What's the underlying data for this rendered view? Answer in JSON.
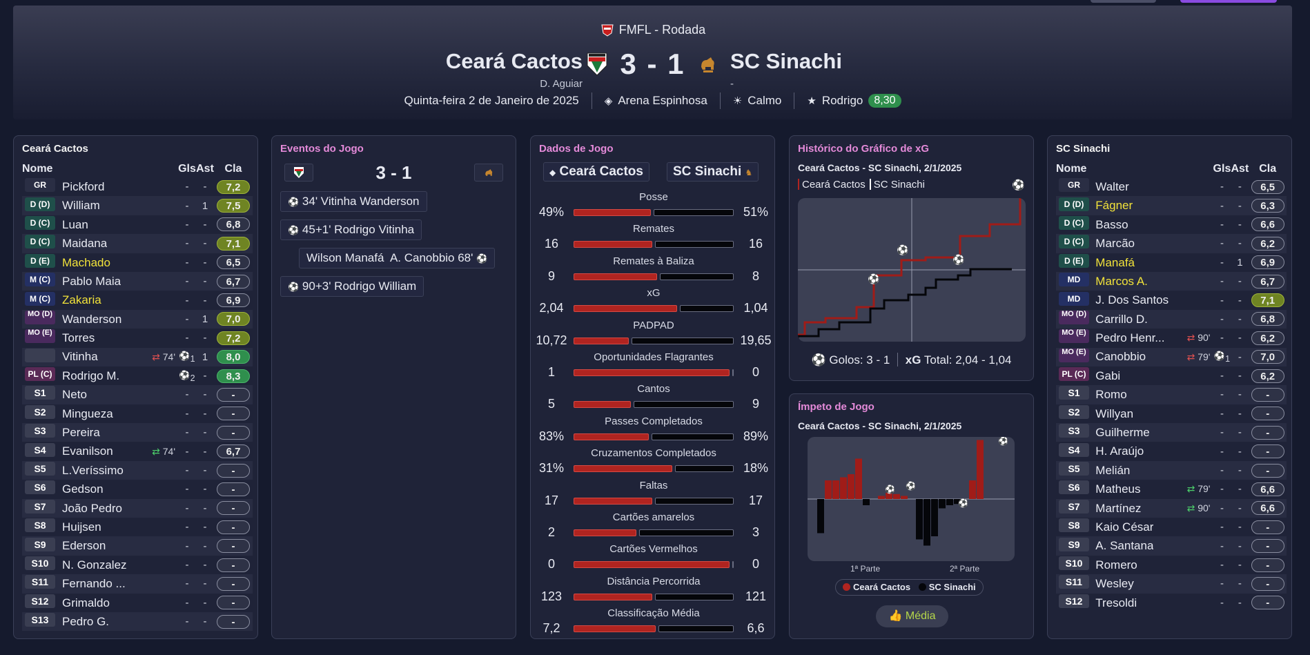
{
  "header": {
    "competition": "FMFL - Rodada",
    "home": {
      "name": "Ceará Cactos",
      "manager": "D. Aguiar"
    },
    "away": {
      "name": "SC Sinachi",
      "manager": "-"
    },
    "score": "3 - 1",
    "date": "Quinta-feira 2 de Janeiro de 2025",
    "stadium": "Arena Espinhosa",
    "weather": "Calmo",
    "motm": "Rodrigo",
    "motm_rating": "8,30"
  },
  "home_squad": {
    "title": "Ceará Cactos",
    "cols": {
      "name": "Nome",
      "gls": "Gls",
      "ast": "Ast",
      "cla": "Cla"
    },
    "players": [
      {
        "pos": "GR",
        "name": "Pickford",
        "sub": "",
        "gls": "-",
        "ast": "-",
        "rating": "7,2",
        "tone": "y"
      },
      {
        "pos": "D (D)",
        "name": "William",
        "sub": "",
        "gls": "-",
        "ast": "1",
        "rating": "7,5",
        "tone": "y"
      },
      {
        "pos": "D (C)",
        "name": "Luan",
        "sub": "",
        "gls": "-",
        "ast": "-",
        "rating": "6,8",
        "tone": "n"
      },
      {
        "pos": "D (C)",
        "name": "Maidana",
        "sub": "",
        "gls": "-",
        "ast": "-",
        "rating": "7,1",
        "tone": "y"
      },
      {
        "pos": "D (E)",
        "name": "Machado",
        "sub": "",
        "gls": "-",
        "ast": "-",
        "rating": "6,5",
        "tone": "n",
        "yellow": true
      },
      {
        "pos": "M (C)",
        "name": "Pablo Maia",
        "sub": "",
        "gls": "-",
        "ast": "-",
        "rating": "6,7",
        "tone": "n"
      },
      {
        "pos": "M (C)",
        "name": "Zakaria",
        "sub": "",
        "gls": "-",
        "ast": "-",
        "rating": "6,9",
        "tone": "n",
        "yellow": true
      },
      {
        "pos": "MO (D)",
        "name": "Wanderson",
        "sub": "",
        "gls": "-",
        "ast": "1",
        "rating": "7,0",
        "tone": "y"
      },
      {
        "pos": "MO (E)",
        "name": "Torres",
        "sub": "",
        "gls": "-",
        "ast": "-",
        "rating": "7,2",
        "tone": "y"
      },
      {
        "pos": "",
        "name": "Vitinha",
        "sub": "74'",
        "gls": "1",
        "ast": "1",
        "rating": "8,0",
        "tone": "g"
      },
      {
        "pos": "PL (C)",
        "name": "Rodrigo M.",
        "sub": "",
        "gls": "2",
        "ast": "-",
        "rating": "8,3",
        "tone": "g"
      },
      {
        "pos": "S1",
        "name": "Neto",
        "sub": "",
        "gls": "-",
        "ast": "-",
        "rating": "-",
        "tone": "n"
      },
      {
        "pos": "S2",
        "name": "Mingueza",
        "sub": "",
        "gls": "-",
        "ast": "-",
        "rating": "-",
        "tone": "n"
      },
      {
        "pos": "S3",
        "name": "Pereira",
        "sub": "",
        "gls": "-",
        "ast": "-",
        "rating": "-",
        "tone": "n"
      },
      {
        "pos": "S4",
        "name": "Evanilson",
        "sub": "74'",
        "gls": "-",
        "ast": "-",
        "rating": "6,7",
        "tone": "n"
      },
      {
        "pos": "S5",
        "name": "L.Veríssimo",
        "sub": "",
        "gls": "-",
        "ast": "-",
        "rating": "-",
        "tone": "n"
      },
      {
        "pos": "S6",
        "name": "Gedson",
        "sub": "",
        "gls": "-",
        "ast": "-",
        "rating": "-",
        "tone": "n"
      },
      {
        "pos": "S7",
        "name": "João Pedro",
        "sub": "",
        "gls": "-",
        "ast": "-",
        "rating": "-",
        "tone": "n"
      },
      {
        "pos": "S8",
        "name": "Huijsen",
        "sub": "",
        "gls": "-",
        "ast": "-",
        "rating": "-",
        "tone": "n"
      },
      {
        "pos": "S9",
        "name": "Ederson",
        "sub": "",
        "gls": "-",
        "ast": "-",
        "rating": "-",
        "tone": "n"
      },
      {
        "pos": "S10",
        "name": "N. Gonzalez",
        "sub": "",
        "gls": "-",
        "ast": "-",
        "rating": "-",
        "tone": "n"
      },
      {
        "pos": "S11",
        "name": "Fernando ...",
        "sub": "",
        "gls": "-",
        "ast": "-",
        "rating": "-",
        "tone": "n"
      },
      {
        "pos": "S12",
        "name": "Grimaldo",
        "sub": "",
        "gls": "-",
        "ast": "-",
        "rating": "-",
        "tone": "n"
      },
      {
        "pos": "S13",
        "name": "Pedro G.",
        "sub": "",
        "gls": "-",
        "ast": "-",
        "rating": "-",
        "tone": "n"
      }
    ]
  },
  "away_squad": {
    "title": "SC Sinachi",
    "cols": {
      "name": "Nome",
      "gls": "Gls",
      "ast": "Ast",
      "cla": "Cla"
    },
    "players": [
      {
        "pos": "GR",
        "name": "Walter",
        "sub": "",
        "gls": "-",
        "ast": "-",
        "rating": "6,5",
        "tone": "n"
      },
      {
        "pos": "D (D)",
        "name": "Fágner",
        "sub": "",
        "gls": "-",
        "ast": "-",
        "rating": "6,3",
        "tone": "n",
        "yellow": true
      },
      {
        "pos": "D (C)",
        "name": "Basso",
        "sub": "",
        "gls": "-",
        "ast": "-",
        "rating": "6,6",
        "tone": "n"
      },
      {
        "pos": "D (C)",
        "name": "Marcão",
        "sub": "",
        "gls": "-",
        "ast": "-",
        "rating": "6,2",
        "tone": "n"
      },
      {
        "pos": "D (E)",
        "name": "Manafá",
        "sub": "",
        "gls": "-",
        "ast": "1",
        "rating": "6,9",
        "tone": "n",
        "yellow": true
      },
      {
        "pos": "MD",
        "name": "Marcos A.",
        "sub": "",
        "gls": "-",
        "ast": "-",
        "rating": "6,7",
        "tone": "n",
        "yellow": true
      },
      {
        "pos": "MD",
        "name": "J. Dos Santos",
        "sub": "",
        "gls": "-",
        "ast": "-",
        "rating": "7,1",
        "tone": "y"
      },
      {
        "pos": "MO (D)",
        "name": "Carrillo D.",
        "sub": "",
        "gls": "-",
        "ast": "-",
        "rating": "6,8",
        "tone": "n"
      },
      {
        "pos": "MO (E)",
        "name": "Pedro Henr...",
        "sub": "90'",
        "gls": "-",
        "ast": "-",
        "rating": "6,2",
        "tone": "n"
      },
      {
        "pos": "MO (E)",
        "name": "Canobbio",
        "sub": "79'",
        "gls": "1",
        "ast": "-",
        "rating": "7,0",
        "tone": "n"
      },
      {
        "pos": "PL (C)",
        "name": "Gabi",
        "sub": "",
        "gls": "-",
        "ast": "-",
        "rating": "6,2",
        "tone": "n"
      },
      {
        "pos": "S1",
        "name": "Romo",
        "sub": "",
        "gls": "-",
        "ast": "-",
        "rating": "-",
        "tone": "n"
      },
      {
        "pos": "S2",
        "name": "Willyan",
        "sub": "",
        "gls": "-",
        "ast": "-",
        "rating": "-",
        "tone": "n"
      },
      {
        "pos": "S3",
        "name": "Guilherme",
        "sub": "",
        "gls": "-",
        "ast": "-",
        "rating": "-",
        "tone": "n"
      },
      {
        "pos": "S4",
        "name": "H. Araújo",
        "sub": "",
        "gls": "-",
        "ast": "-",
        "rating": "-",
        "tone": "n"
      },
      {
        "pos": "S5",
        "name": "Melián",
        "sub": "",
        "gls": "-",
        "ast": "-",
        "rating": "-",
        "tone": "n"
      },
      {
        "pos": "S6",
        "name": "Matheus",
        "sub": "79'",
        "gls": "-",
        "ast": "-",
        "rating": "6,6",
        "tone": "n"
      },
      {
        "pos": "S7",
        "name": "Martínez",
        "sub": "90'",
        "gls": "-",
        "ast": "-",
        "rating": "6,6",
        "tone": "n"
      },
      {
        "pos": "S8",
        "name": "Kaio César",
        "sub": "",
        "gls": "-",
        "ast": "-",
        "rating": "-",
        "tone": "n"
      },
      {
        "pos": "S9",
        "name": "A. Santana",
        "sub": "",
        "gls": "-",
        "ast": "-",
        "rating": "-",
        "tone": "n"
      },
      {
        "pos": "S10",
        "name": "Romero",
        "sub": "",
        "gls": "-",
        "ast": "-",
        "rating": "-",
        "tone": "n"
      },
      {
        "pos": "S11",
        "name": "Wesley",
        "sub": "",
        "gls": "-",
        "ast": "-",
        "rating": "-",
        "tone": "n"
      },
      {
        "pos": "S12",
        "name": "Tresoldi",
        "sub": "",
        "gls": "-",
        "ast": "-",
        "rating": "-",
        "tone": "n"
      }
    ]
  },
  "events": {
    "title": "Eventos do Jogo",
    "score": "3 - 1",
    "items": [
      {
        "side": "home",
        "text": "34' Vitinha Wanderson"
      },
      {
        "side": "home",
        "text": "45+1' Rodrigo Vitinha"
      },
      {
        "side": "away",
        "text": "Wilson Manafá  A. Canobbio 68'"
      },
      {
        "side": "home",
        "text": "90+3' Rodrigo William"
      }
    ]
  },
  "stats": {
    "title": "Dados de Jogo",
    "home": "Ceará Cactos",
    "away": "SC Sinachi",
    "rows": [
      {
        "label": "Posse",
        "home": "49%",
        "away": "51%",
        "share": 0.49
      },
      {
        "label": "Remates",
        "home": "16",
        "away": "16",
        "share": 0.5
      },
      {
        "label": "Remates à Baliza",
        "home": "9",
        "away": "8",
        "share": 0.53
      },
      {
        "label": "xG",
        "home": "2,04",
        "away": "1,04",
        "share": 0.66
      },
      {
        "label": "PADPAD",
        "home": "10,72",
        "away": "19,65",
        "share": 0.35
      },
      {
        "label": "Oportunidades Flagrantes",
        "home": "1",
        "away": "0",
        "share": 1
      },
      {
        "label": "Cantos",
        "home": "5",
        "away": "9",
        "share": 0.36
      },
      {
        "label": "Passes Completados",
        "home": "83%",
        "away": "89%",
        "share": 0.48
      },
      {
        "label": "Cruzamentos Completados",
        "home": "31%",
        "away": "18%",
        "share": 0.63
      },
      {
        "label": "Faltas",
        "home": "17",
        "away": "17",
        "share": 0.5
      },
      {
        "label": "Cartões amarelos",
        "home": "2",
        "away": "3",
        "share": 0.4
      },
      {
        "label": "Cartões Vermelhos",
        "home": "0",
        "away": "0",
        "share": 1
      },
      {
        "label": "Distância Percorrida",
        "home": "123",
        "away": "121",
        "share": 0.5
      },
      {
        "label": "Classificação Média",
        "home": "7,2",
        "away": "6,6",
        "share": 0.52
      }
    ]
  },
  "xg": {
    "title": "Histórico do Gráfico de xG",
    "subtitle": "Ceará Cactos - SC Sinachi, 2/1/2025",
    "legend_home": "Ceará Cactos",
    "legend_away": "SC Sinachi",
    "goals_label": "Golos: 3 - 1",
    "xg_label": "xG",
    "total_label": "Total: 2,04 - 1,04"
  },
  "momentum": {
    "title": "Ímpeto de Jogo",
    "subtitle": "Ceará Cactos - SC Sinachi, 2/1/2025",
    "first_half": "1ª Parte",
    "second_half": "2ª Parte",
    "legend_home": "Ceará Cactos",
    "legend_away": "SC Sinachi",
    "button": "Média",
    "bars": [
      -0.55,
      0.3,
      0.3,
      0.35,
      0.4,
      0.65,
      -0.1,
      0,
      0.05,
      0.1,
      0.08,
      0.05,
      0,
      -0.65,
      -0.75,
      -0.6,
      -0.15,
      -0.1,
      -0.08,
      0,
      0.3,
      0.95
    ]
  },
  "colors": {
    "home": "#b02420",
    "away": "#05060a",
    "accent_pink": "#e48ad9",
    "good": "#2f8f4d"
  }
}
